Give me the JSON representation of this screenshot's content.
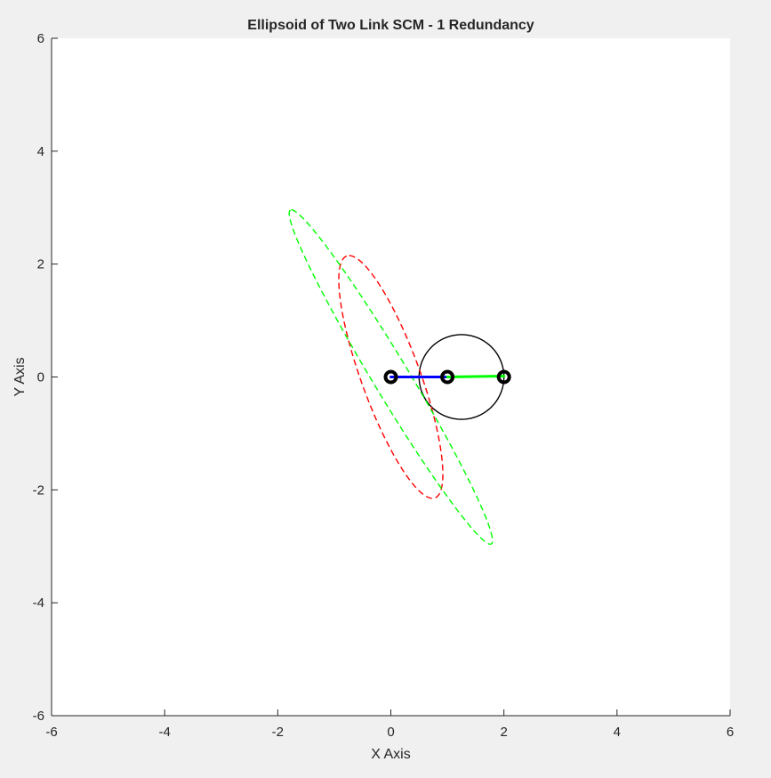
{
  "chart_data": {
    "type": "line",
    "title": "Ellipsoid of Two Link SCM - 1 Redundancy",
    "xlabel": "X Axis",
    "ylabel": "Y Axis",
    "xlim": [
      -6,
      6
    ],
    "ylim": [
      -6,
      6
    ],
    "xticks": [
      "-6",
      "-4",
      "-2",
      "0",
      "2",
      "4",
      "6"
    ],
    "yticks": [
      "-6",
      "-4",
      "-2",
      "0",
      "2",
      "4",
      "6"
    ],
    "grid": false,
    "legend": "none",
    "series": [
      {
        "kind": "line",
        "color": "#0000ff",
        "width": 3,
        "x": [
          0,
          1
        ],
        "y": [
          0,
          0
        ]
      },
      {
        "kind": "line",
        "color": "#00ff00",
        "width": 3,
        "x": [
          1,
          2
        ],
        "y": [
          0,
          0.015
        ]
      },
      {
        "kind": "ellipse",
        "color": "#000000",
        "dash": "none",
        "center": [
          1.25,
          0
        ],
        "semi_axes": [
          0.75,
          0.75
        ],
        "angle_deg": 0
      },
      {
        "kind": "ellipse",
        "color": "#ff0000",
        "dash": "dashed",
        "center": [
          0,
          0
        ],
        "semi_axes": [
          2.28,
          0.52
        ],
        "angle_deg": 110
      },
      {
        "kind": "ellipse",
        "color": "#00ff00",
        "dash": "dashed",
        "center": [
          0,
          0
        ],
        "semi_axes": [
          3.45,
          0.32
        ],
        "angle_deg": 121
      },
      {
        "kind": "markers",
        "color": "#000000",
        "marker": "circle",
        "x": [
          0,
          1,
          2
        ],
        "y": [
          0,
          0,
          0
        ]
      }
    ]
  }
}
